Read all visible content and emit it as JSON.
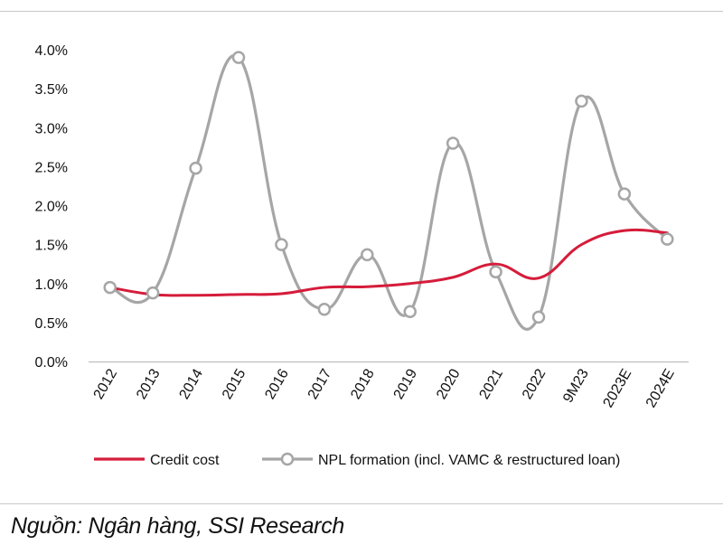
{
  "chart_data": {
    "type": "line",
    "categories": [
      "2012",
      "2013",
      "2014",
      "2015",
      "2016",
      "2017",
      "2018",
      "2019",
      "2020",
      "2021",
      "2022",
      "9M23",
      "2023E",
      "2024E"
    ],
    "y_ticks": [
      "0.0%",
      "0.5%",
      "1.0%",
      "1.5%",
      "2.0%",
      "2.5%",
      "3.0%",
      "3.5%",
      "4.0%"
    ],
    "ylim": [
      0,
      4.0
    ],
    "series": [
      {
        "name": "Credit cost",
        "color": "#d51c3b",
        "marker": false,
        "values": [
          0.95,
          0.86,
          0.85,
          0.86,
          0.87,
          0.95,
          0.96,
          1.0,
          1.08,
          1.25,
          1.07,
          1.5,
          1.68,
          1.65
        ]
      },
      {
        "name": "NPL formation (incl. VAMC & restructured loan)",
        "color": "#a6a6a6",
        "marker": true,
        "values": [
          0.95,
          0.88,
          2.48,
          3.9,
          1.5,
          0.67,
          1.37,
          0.64,
          2.8,
          1.15,
          0.57,
          3.34,
          2.15,
          1.57
        ]
      }
    ],
    "legend": "bottom"
  },
  "source": "Nguồn: Ngân hàng, SSI Research"
}
